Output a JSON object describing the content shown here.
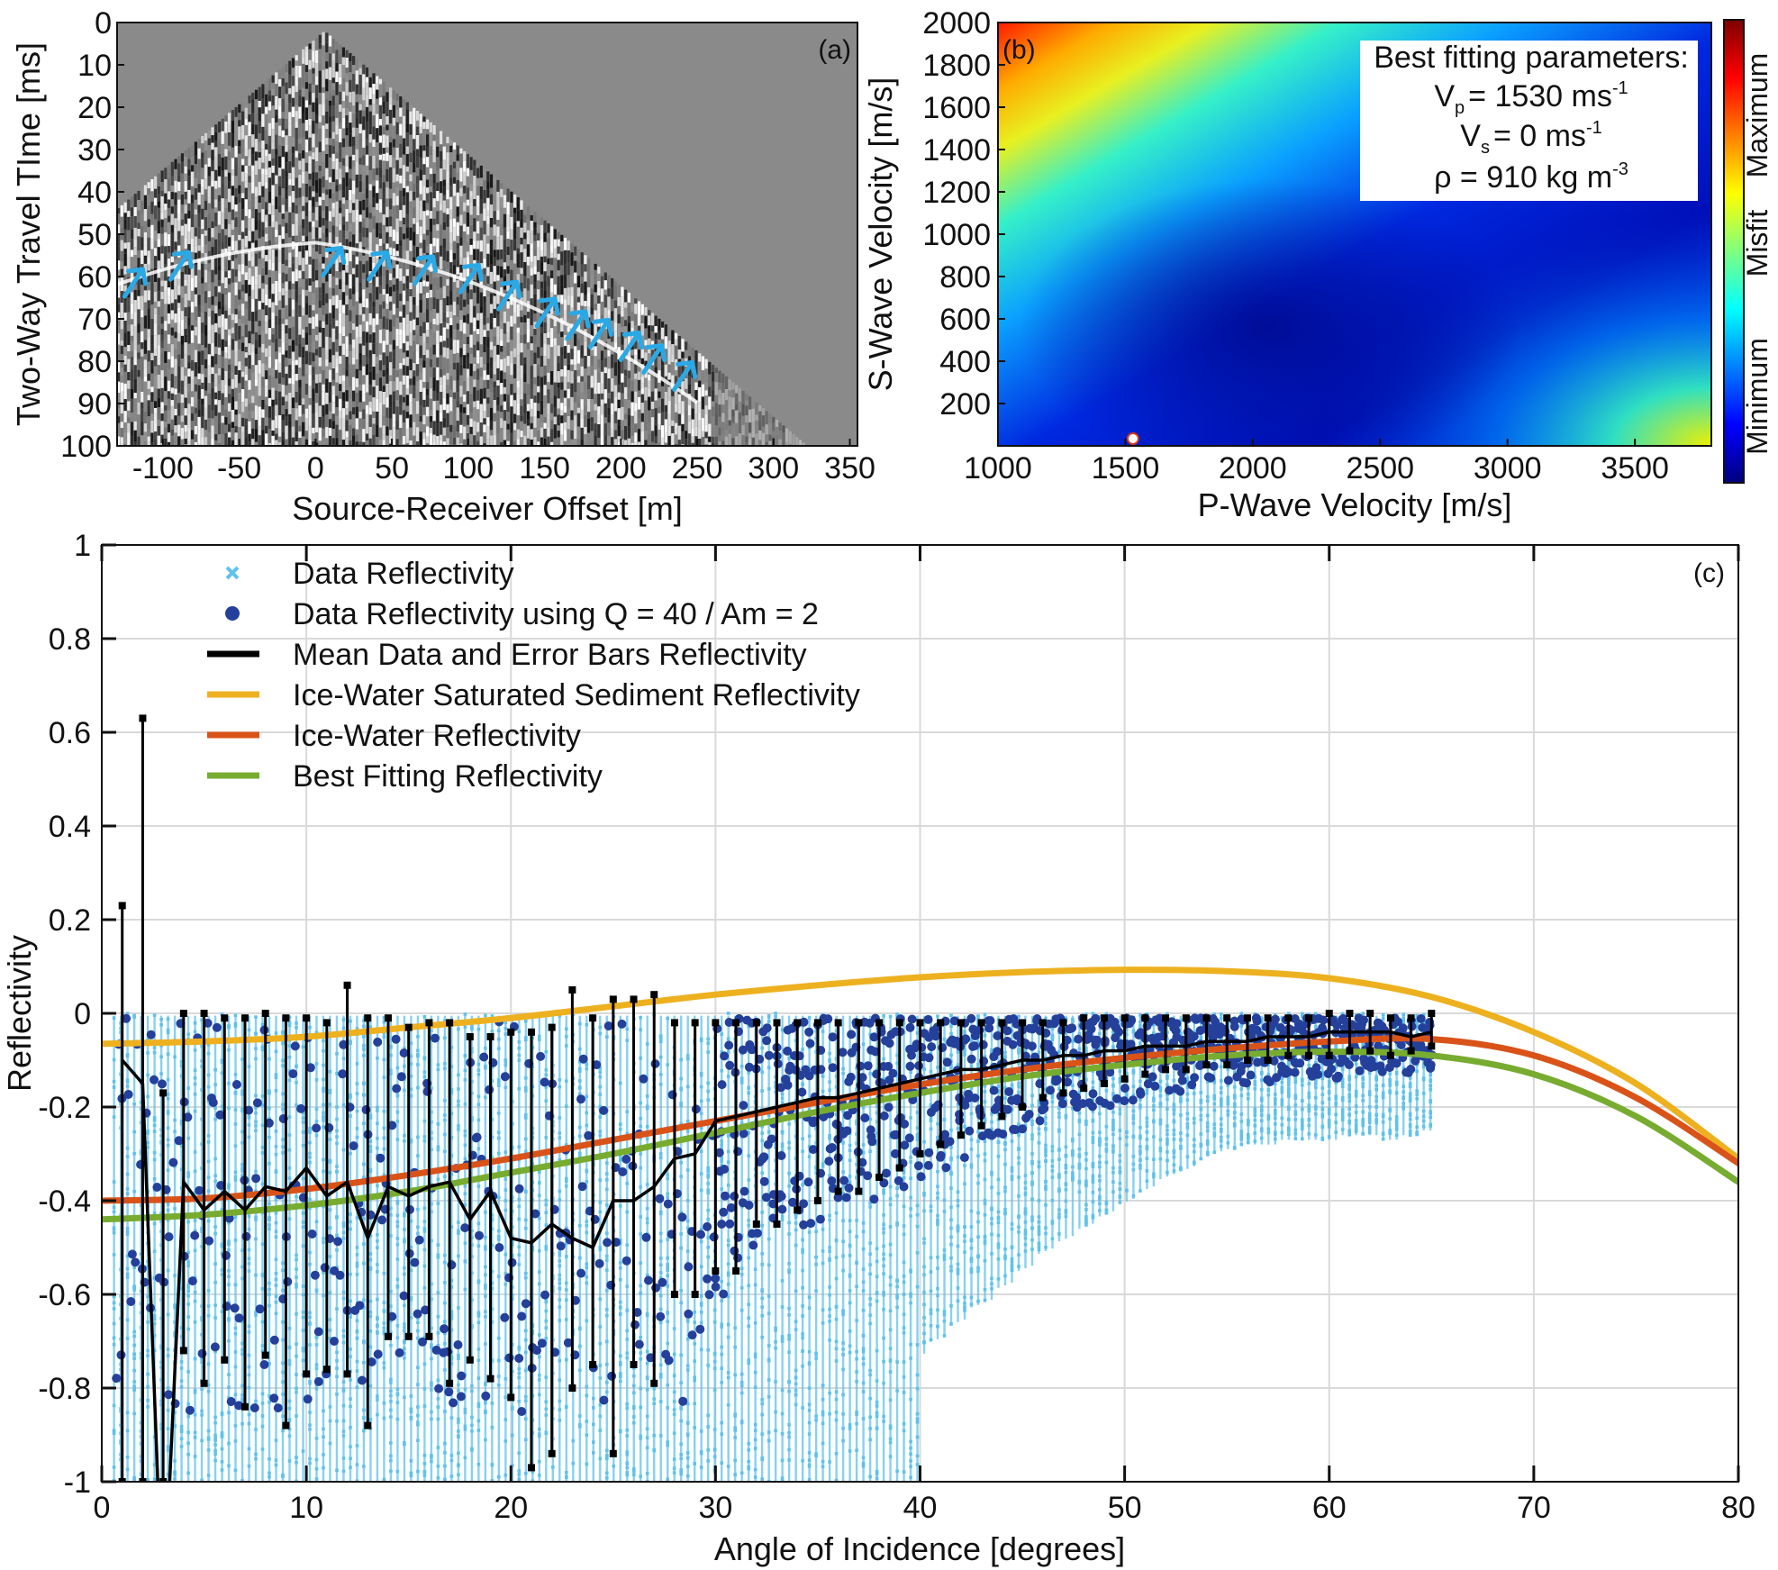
{
  "chart_data": [
    {
      "panel": "(a)",
      "type": "heatmap",
      "xlabel": "Source-Receiver Offset [m]",
      "ylabel": "Two-Way Travel TIme [ms]",
      "xlim": [
        -130,
        355
      ],
      "ylim": [
        100,
        0
      ],
      "xticks": [
        -100,
        -50,
        0,
        50,
        100,
        150,
        200,
        250,
        300,
        350
      ],
      "yticks": [
        0,
        10,
        20,
        30,
        40,
        50,
        60,
        70,
        80,
        90,
        100
      ],
      "reflector_arrows": [
        {
          "x": -125,
          "t": 60
        },
        {
          "x": -95,
          "t": 56
        },
        {
          "x": 5,
          "t": 55
        },
        {
          "x": 35,
          "t": 56
        },
        {
          "x": 65,
          "t": 57
        },
        {
          "x": 95,
          "t": 59
        },
        {
          "x": 120,
          "t": 63
        },
        {
          "x": 145,
          "t": 67
        },
        {
          "x": 165,
          "t": 70
        },
        {
          "x": 180,
          "t": 72
        },
        {
          "x": 200,
          "t": 75
        },
        {
          "x": 215,
          "t": 78
        },
        {
          "x": 235,
          "t": 82
        }
      ],
      "arrow_color": "#2aa9e6"
    },
    {
      "panel": "(b)",
      "type": "heatmap",
      "xlabel": "P-Wave Velocity [m/s]",
      "ylabel": "S-Wave Velocity [m/s]",
      "xlim": [
        1000,
        3800
      ],
      "ylim": [
        0,
        2000
      ],
      "xticks": [
        1000,
        1500,
        2000,
        2500,
        3000,
        3500
      ],
      "yticks": [
        200,
        400,
        600,
        800,
        1000,
        1200,
        1400,
        1600,
        1800,
        2000
      ],
      "best_fit_point": {
        "vp": 1530,
        "vs": 0
      },
      "colorbar": {
        "title": "Misfit",
        "top_label": "Maximum",
        "bottom_label": "Minimum",
        "colormap": "jet"
      },
      "annotation": {
        "title": "Best fitting parameters:",
        "vp_sym": "V",
        "vp_sub": "p",
        "vp_val": "= 1530 ms",
        "vp_sup": "-1",
        "vs_sym": "V",
        "vs_sub": "s",
        "vs_val": "= 0 ms",
        "vs_sup": "-1",
        "rho_val": "ρ = 910 kg m",
        "rho_sup": "-3"
      }
    },
    {
      "panel": "(c)",
      "type": "line",
      "xlabel": "Angle of Incidence [degrees]",
      "ylabel": "Reflectivity",
      "xlim": [
        0,
        80
      ],
      "ylim": [
        -1,
        1
      ],
      "xticks": [
        0,
        10,
        20,
        30,
        40,
        50,
        60,
        70,
        80
      ],
      "yticks": [
        -1,
        -0.8,
        -0.6,
        -0.4,
        -0.2,
        0,
        0.2,
        0.4,
        0.6,
        0.8,
        1
      ],
      "grid": true,
      "legend_placement": "top-left",
      "series": [
        {
          "name": "Data Reflectivity",
          "kind": "scatter-x",
          "color": "#5ec2ec"
        },
        {
          "name": "Data Reflectivity using Q = 40 / Am = 2",
          "kind": "scatter-dot",
          "color": "#24409a"
        },
        {
          "name": "Mean Data and Error Bars Reflectivity",
          "kind": "line-errorbar",
          "color": "#000000",
          "x": [
            1,
            2,
            3,
            4,
            5,
            6,
            7,
            8,
            9,
            10,
            11,
            12,
            13,
            14,
            15,
            16,
            17,
            18,
            19,
            20,
            21,
            22,
            23,
            24,
            25,
            26,
            27,
            28,
            29,
            30,
            31,
            32,
            33,
            34,
            35,
            36,
            37,
            38,
            39,
            40,
            41,
            42,
            43,
            44,
            45,
            46,
            47,
            48,
            49,
            50,
            51,
            52,
            53,
            54,
            55,
            56,
            57,
            58,
            59,
            60,
            61,
            62,
            63,
            64,
            65
          ],
          "y": [
            -0.1,
            -0.15,
            -1.3,
            -0.36,
            -0.42,
            -0.38,
            -0.42,
            -0.37,
            -0.38,
            -0.33,
            -0.39,
            -0.36,
            -0.48,
            -0.37,
            -0.39,
            -0.37,
            -0.36,
            -0.44,
            -0.38,
            -0.48,
            -0.49,
            -0.45,
            -0.48,
            -0.5,
            -0.4,
            -0.4,
            -0.37,
            -0.31,
            -0.3,
            -0.23,
            -0.22,
            -0.21,
            -0.2,
            -0.19,
            -0.18,
            -0.18,
            -0.17,
            -0.16,
            -0.15,
            -0.14,
            -0.13,
            -0.12,
            -0.12,
            -0.11,
            -0.1,
            -0.1,
            -0.09,
            -0.09,
            -0.08,
            -0.08,
            -0.07,
            -0.07,
            -0.07,
            -0.06,
            -0.06,
            -0.06,
            -0.05,
            -0.05,
            -0.05,
            -0.04,
            -0.04,
            -0.04,
            -0.04,
            -0.05,
            -0.04
          ],
          "err_upper": [
            0.23,
            0.63,
            -0.17,
            0.0,
            0.0,
            -0.01,
            -0.01,
            0.0,
            -0.01,
            -0.01,
            -0.02,
            0.06,
            -0.01,
            -0.01,
            -0.03,
            -0.02,
            -0.02,
            -0.05,
            -0.05,
            -0.04,
            -0.04,
            -0.03,
            0.05,
            -0.01,
            0.03,
            0.03,
            0.04,
            -0.02,
            -0.02,
            -0.02,
            -0.02,
            -0.02,
            -0.02,
            -0.02,
            -0.02,
            -0.02,
            -0.02,
            -0.02,
            -0.02,
            -0.02,
            -0.02,
            -0.02,
            -0.02,
            -0.02,
            -0.02,
            -0.02,
            -0.02,
            -0.01,
            -0.01,
            -0.01,
            -0.01,
            -0.01,
            -0.01,
            -0.01,
            -0.01,
            -0.01,
            -0.01,
            -0.01,
            -0.01,
            0.0,
            0.0,
            0.0,
            -0.01,
            -0.01,
            0.0
          ],
          "err_lower": [
            -1.0,
            -1.0,
            -1.0,
            -0.72,
            -0.79,
            -0.74,
            -0.84,
            -0.73,
            -0.88,
            -0.77,
            -0.76,
            -0.77,
            -0.88,
            -0.69,
            -0.69,
            -0.69,
            -0.79,
            -0.74,
            -0.78,
            -0.82,
            -0.97,
            -0.94,
            -0.8,
            -0.75,
            -0.94,
            -0.75,
            -0.79,
            -0.6,
            -0.6,
            -0.55,
            -0.55,
            -0.45,
            -0.45,
            -0.42,
            -0.4,
            -0.38,
            -0.38,
            -0.35,
            -0.33,
            -0.3,
            -0.28,
            -0.26,
            -0.24,
            -0.22,
            -0.2,
            -0.18,
            -0.17,
            -0.16,
            -0.15,
            -0.14,
            -0.13,
            -0.12,
            -0.12,
            -0.11,
            -0.11,
            -0.1,
            -0.1,
            -0.09,
            -0.09,
            -0.09,
            -0.08,
            -0.08,
            -0.09,
            -0.08,
            -0.07
          ]
        },
        {
          "name": "Ice-Water Saturated Sediment Reflectivity",
          "kind": "line",
          "color": "#edb120",
          "x": [
            0,
            5,
            10,
            15,
            20,
            25,
            30,
            35,
            40,
            45,
            50,
            55,
            60,
            65,
            70,
            75,
            80
          ],
          "y": [
            -0.065,
            -0.06,
            -0.05,
            -0.03,
            -0.01,
            0.015,
            0.04,
            0.06,
            0.077,
            0.088,
            0.093,
            0.09,
            0.075,
            0.035,
            -0.04,
            -0.15,
            -0.31
          ]
        },
        {
          "name": "Ice-Water Reflectivity",
          "kind": "line",
          "color": "#d95319",
          "x": [
            0,
            5,
            10,
            15,
            20,
            25,
            30,
            35,
            40,
            45,
            50,
            55,
            60,
            65,
            70,
            75,
            80
          ],
          "y": [
            -0.4,
            -0.395,
            -0.375,
            -0.345,
            -0.31,
            -0.27,
            -0.23,
            -0.19,
            -0.152,
            -0.12,
            -0.095,
            -0.075,
            -0.06,
            -0.055,
            -0.09,
            -0.18,
            -0.32
          ]
        },
        {
          "name": "Best Fitting Reflectivity",
          "kind": "line",
          "color": "#77ac30",
          "x": [
            0,
            5,
            10,
            15,
            20,
            25,
            30,
            35,
            40,
            45,
            50,
            55,
            60,
            65,
            70,
            75,
            80
          ],
          "y": [
            -0.44,
            -0.43,
            -0.41,
            -0.38,
            -0.34,
            -0.3,
            -0.255,
            -0.21,
            -0.17,
            -0.135,
            -0.11,
            -0.09,
            -0.082,
            -0.09,
            -0.13,
            -0.22,
            -0.36
          ]
        }
      ]
    }
  ],
  "text": {
    "panel_a": "(a)",
    "panel_b": "(b)",
    "panel_c": "(c)"
  }
}
